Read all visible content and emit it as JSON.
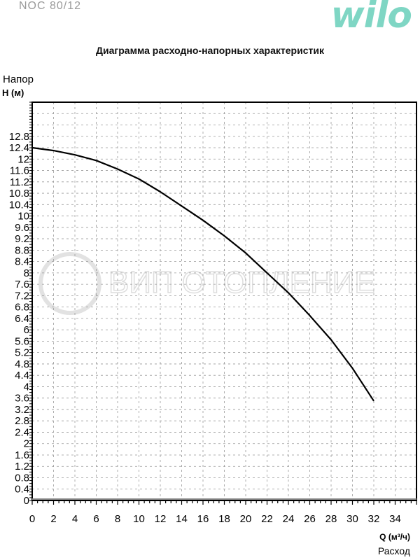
{
  "header": {
    "model": "NOC 80/12",
    "logo": "wilo",
    "watermark": "ВИП ОТОПЛЕНИЕ"
  },
  "chart_data": {
    "type": "line",
    "title": "Диаграмма расходно-напорных характеристик",
    "ylabel_top": "Напор",
    "ylabel": "H (м)",
    "xlabel": "Q (м³/ч)",
    "xlabel_bottom": "Расход",
    "xlim": [
      0,
      36
    ],
    "ylim": [
      0,
      14
    ],
    "grid": true,
    "x_ticks": [
      0,
      2,
      4,
      6,
      8,
      10,
      12,
      14,
      16,
      18,
      20,
      22,
      24,
      26,
      28,
      30,
      32,
      34
    ],
    "y_ticks": [
      0,
      0.4,
      0.8,
      1.2,
      1.6,
      2,
      2.4,
      2.8,
      3.2,
      3.6,
      4,
      4.4,
      4.8,
      5.2,
      5.6,
      6,
      6.4,
      6.8,
      7.2,
      7.6,
      8,
      8.4,
      8.8,
      9.2,
      9.6,
      10,
      10.4,
      10.8,
      11.2,
      11.6,
      12,
      12.4,
      12.8
    ],
    "series": [
      {
        "x": [
          0,
          2,
          4,
          6,
          8,
          10,
          12,
          14,
          16,
          18,
          20,
          22,
          24,
          26,
          28,
          30,
          32
        ],
        "y": [
          12.4,
          12.3,
          12.15,
          11.95,
          11.65,
          11.3,
          10.85,
          10.35,
          9.85,
          9.3,
          8.7,
          8.0,
          7.3,
          6.5,
          5.65,
          4.65,
          3.5
        ]
      }
    ]
  }
}
